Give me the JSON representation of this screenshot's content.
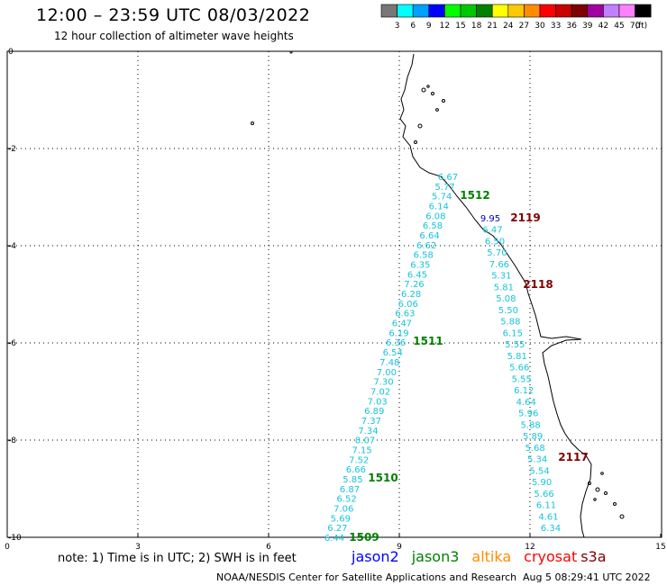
{
  "header": {
    "title": "12:00 – 23:59 UTC 08/03/2022",
    "subtitle": "12 hour collection of altimeter wave heights"
  },
  "legend": {
    "unit": "(ft)",
    "bins": [
      {
        "label": "3",
        "color": "#777777"
      },
      {
        "label": "6",
        "color": "#00ffff"
      },
      {
        "label": "9",
        "color": "#00a0ff"
      },
      {
        "label": "12",
        "color": "#0000ff"
      },
      {
        "label": "15",
        "color": "#00ff00"
      },
      {
        "label": "18",
        "color": "#00c800"
      },
      {
        "label": "21",
        "color": "#008000"
      },
      {
        "label": "24",
        "color": "#ffff00"
      },
      {
        "label": "27",
        "color": "#ffc800"
      },
      {
        "label": "30",
        "color": "#ff8c00"
      },
      {
        "label": "33",
        "color": "#ff0000"
      },
      {
        "label": "36",
        "color": "#c80000"
      },
      {
        "label": "39",
        "color": "#800000"
      },
      {
        "label": "42",
        "color": "#a000a0"
      },
      {
        "label": "45",
        "color": "#c080ff"
      },
      {
        "label": "70",
        "color": "#ff80ff"
      },
      {
        "label": "",
        "color": "#000000"
      }
    ]
  },
  "axes": {
    "x_ticks": [
      "0",
      "3",
      "6",
      "9",
      "12",
      "15"
    ],
    "y_ticks": [
      "0",
      "-2",
      "-4",
      "-6",
      "-8",
      "-10"
    ]
  },
  "colors": {
    "swh_text": "#17c4d8",
    "pass_green": "#008000",
    "pass_red": "#800000",
    "pass_blue": "#0000c0",
    "coast": "#000000",
    "grid": "#000000"
  },
  "track_left": {
    "values": [
      "6.67",
      "5.77",
      "5.74",
      "6.14",
      "6.08",
      "6.58",
      "6.64",
      "6.62",
      "6.58",
      "6.35",
      "6.45",
      "7.26",
      "6.28",
      "6.06",
      "6.63",
      "6.47",
      "6.19",
      "6.36",
      "6.54",
      "7.48",
      "7.00",
      "7.30",
      "7.02",
      "7.03",
      "6.89",
      "7.37",
      "7.34",
      "8.07",
      "7.15",
      "7.52",
      "6.66",
      "5.85",
      "6.87",
      "6.52",
      "7.06",
      "5.69",
      "6.27",
      "6.44"
    ]
  },
  "track_right": {
    "values": [
      "9.95",
      "6.47",
      "6.50",
      "5.70",
      "7.66",
      "5.31",
      "5.81",
      "5.08",
      "5.50",
      "5.88",
      "6.15",
      "5.55",
      "5.81",
      "5.66",
      "5.55",
      "6.12",
      "4.64",
      "5.96",
      "5.88",
      "5.89",
      "5.68",
      "5.34",
      "5.54",
      "5.90",
      "5.66",
      "6.11",
      "4.61",
      "6.34"
    ]
  },
  "pass_labels": {
    "jason3": [
      "1512",
      "1511",
      "1510",
      "1509"
    ],
    "cryosat": [
      "2119",
      "2118",
      "2117"
    ]
  },
  "footer": {
    "note": "note:  1) Time is in UTC;  2) SWH is in feet",
    "satellites": [
      {
        "name": "jason2",
        "color": "#0000ff"
      },
      {
        "name": "jason3",
        "color": "#008000"
      },
      {
        "name": "altika",
        "color": "#ff8c00"
      },
      {
        "name": "cryosat",
        "color": "#ff0000"
      },
      {
        "name": "s3a",
        "color": "#800000"
      }
    ],
    "credit": "NOAA/NESDIS Center for Satellite Applications and Research",
    "timestamp": "Aug  5 08:29:41 UTC 2022"
  }
}
